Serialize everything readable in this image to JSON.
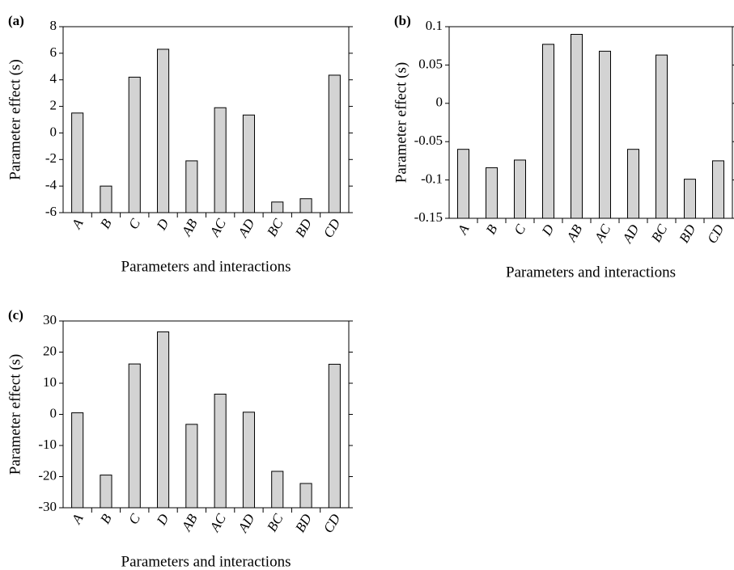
{
  "chart_data": [
    {
      "type": "bar",
      "label": "(a)",
      "ylabel": "Parameter effect (s)",
      "xlabel": "Parameters and interactions",
      "categories": [
        "A",
        "B",
        "C",
        "D",
        "AB",
        "AC",
        "AD",
        "BC",
        "BD",
        "CD"
      ],
      "values": [
        1.5,
        -4.0,
        4.2,
        6.3,
        -2.1,
        1.9,
        1.35,
        -5.2,
        -4.95,
        4.35
      ],
      "color": "#d3d3d3",
      "ylim": [
        -6,
        8
      ],
      "yticks": [
        -6,
        -4,
        -2,
        0,
        2,
        4,
        6,
        8
      ]
    },
    {
      "type": "bar",
      "label": "(b)",
      "ylabel": "Parameter effect (s)",
      "xlabel": "Parameters and interactions",
      "categories": [
        "A",
        "B",
        "C",
        "D",
        "AB",
        "AC",
        "AD",
        "BC",
        "BD",
        "CD"
      ],
      "values": [
        -0.06,
        -0.084,
        -0.074,
        0.077,
        0.09,
        0.068,
        -0.06,
        0.063,
        -0.099,
        -0.075
      ],
      "color": "#d3d3d3",
      "ylim": [
        -0.15,
        0.1
      ],
      "yticks": [
        -0.15,
        -0.1,
        -0.05,
        0,
        0.05,
        0.1
      ]
    },
    {
      "type": "bar",
      "label": "(c)",
      "ylabel": "Parameter effect (s)",
      "xlabel": "Parameters and interactions",
      "categories": [
        "A",
        "B",
        "C",
        "D",
        "AB",
        "AC",
        "AD",
        "BC",
        "BD",
        "CD"
      ],
      "values": [
        0.5,
        -19.5,
        16.2,
        26.5,
        -3.2,
        6.5,
        0.7,
        -18.3,
        -22.2,
        16.1
      ],
      "color": "#d3d3d3",
      "ylim": [
        -30,
        30
      ],
      "yticks": [
        -30,
        -20,
        -10,
        0,
        10,
        20,
        30
      ]
    }
  ]
}
